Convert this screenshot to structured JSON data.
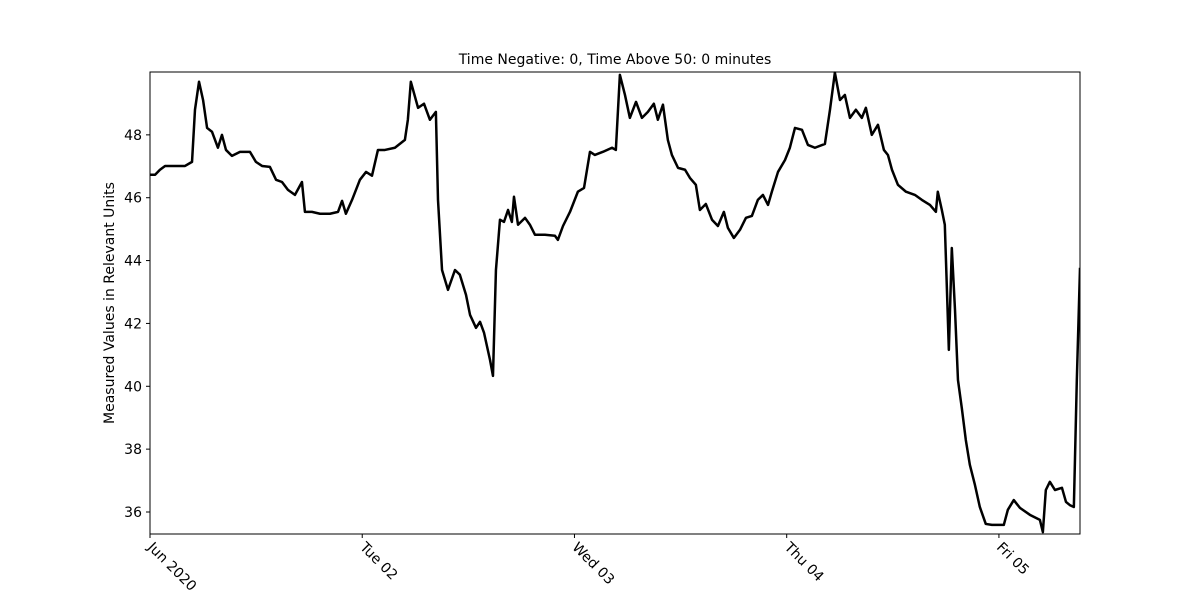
{
  "chart_data": {
    "type": "line",
    "title": "Time Negative: 0, Time Above 50: 0 minutes",
    "y_label": "Measured Values in Relevant Units",
    "color": "#000000",
    "x": [
      0,
      0.024,
      0.047,
      0.071,
      0.118,
      0.165,
      0.198,
      0.212,
      0.231,
      0.25,
      0.269,
      0.292,
      0.32,
      0.339,
      0.358,
      0.386,
      0.424,
      0.471,
      0.499,
      0.528,
      0.565,
      0.594,
      0.622,
      0.65,
      0.683,
      0.716,
      0.73,
      0.763,
      0.801,
      0.848,
      0.886,
      0.905,
      0.923,
      0.952,
      0.989,
      1.018,
      1.046,
      1.074,
      1.107,
      1.154,
      1.201,
      1.215,
      1.229,
      1.263,
      1.291,
      1.319,
      1.347,
      1.357,
      1.376,
      1.404,
      1.437,
      1.46,
      1.489,
      1.508,
      1.536,
      1.555,
      1.574,
      1.602,
      1.616,
      1.63,
      1.649,
      1.668,
      1.687,
      1.705,
      1.715,
      1.734,
      1.767,
      1.79,
      1.814,
      1.861,
      1.908,
      1.922,
      1.946,
      1.979,
      2.016,
      2.045,
      2.073,
      2.096,
      2.134,
      2.177,
      2.195,
      2.214,
      2.238,
      2.261,
      2.29,
      2.318,
      2.346,
      2.374,
      2.393,
      2.417,
      2.44,
      2.459,
      2.488,
      2.521,
      2.544,
      2.572,
      2.591,
      2.619,
      2.648,
      2.676,
      2.704,
      2.723,
      2.751,
      2.78,
      2.808,
      2.836,
      2.864,
      2.888,
      2.912,
      2.93,
      2.959,
      2.992,
      3.015,
      3.039,
      3.072,
      3.1,
      3.133,
      3.18,
      3.204,
      3.227,
      3.251,
      3.274,
      3.298,
      3.326,
      3.354,
      3.373,
      3.401,
      3.43,
      3.458,
      3.477,
      3.496,
      3.524,
      3.562,
      3.604,
      3.637,
      3.675,
      3.703,
      3.712,
      3.731,
      3.745,
      3.755,
      3.764,
      3.778,
      3.793,
      3.807,
      3.825,
      3.844,
      3.863,
      3.887,
      3.91,
      3.938,
      3.967,
      4.023,
      4.042,
      4.07,
      4.099,
      4.146,
      4.193,
      4.207,
      4.221,
      4.24,
      4.264,
      4.297,
      4.316,
      4.334,
      4.353,
      4.367,
      4.382
    ],
    "values": [
      46.73,
      46.73,
      46.89,
      47.01,
      47.01,
      47.01,
      47.14,
      48.8,
      49.69,
      49.11,
      48.22,
      48.1,
      47.59,
      48.0,
      47.52,
      47.33,
      47.46,
      47.46,
      47.14,
      47.01,
      46.98,
      46.57,
      46.5,
      46.25,
      46.09,
      46.5,
      45.55,
      45.55,
      45.49,
      45.49,
      45.55,
      45.9,
      45.49,
      45.93,
      46.57,
      46.82,
      46.7,
      47.52,
      47.52,
      47.59,
      47.84,
      48.48,
      49.69,
      48.86,
      48.99,
      48.48,
      48.73,
      45.93,
      43.7,
      43.07,
      43.7,
      43.55,
      42.91,
      42.27,
      41.86,
      42.05,
      41.7,
      40.84,
      40.33,
      43.7,
      45.3,
      45.23,
      45.61,
      45.23,
      46.03,
      45.14,
      45.36,
      45.14,
      44.82,
      44.82,
      44.79,
      44.66,
      45.1,
      45.55,
      46.19,
      46.31,
      47.46,
      47.36,
      47.46,
      47.59,
      47.52,
      49.91,
      49.27,
      48.54,
      49.05,
      48.54,
      48.73,
      48.99,
      48.48,
      48.96,
      47.84,
      47.36,
      46.95,
      46.89,
      46.63,
      46.41,
      45.61,
      45.8,
      45.3,
      45.1,
      45.55,
      45.04,
      44.72,
      44.98,
      45.36,
      45.42,
      45.93,
      46.09,
      45.77,
      46.19,
      46.82,
      47.2,
      47.59,
      48.22,
      48.16,
      47.68,
      47.59,
      47.71,
      48.8,
      49.98,
      49.11,
      49.27,
      48.54,
      48.8,
      48.54,
      48.86,
      48.0,
      48.32,
      47.52,
      47.36,
      46.89,
      46.41,
      46.19,
      46.09,
      45.93,
      45.77,
      45.55,
      46.19,
      45.61,
      45.14,
      43.07,
      41.16,
      44.4,
      42.43,
      40.2,
      39.31,
      38.29,
      37.5,
      36.86,
      36.16,
      35.62,
      35.59,
      35.59,
      36.07,
      36.38,
      36.13,
      35.91,
      35.75,
      35.36,
      36.7,
      36.96,
      36.7,
      36.77,
      36.32,
      36.22,
      36.16,
      40.2,
      43.77
    ],
    "xlim": [
      0,
      4.382
    ],
    "xticks": [
      {
        "value": 0,
        "label": "Jun 2020"
      },
      {
        "value": 1,
        "label": "Tue 02"
      },
      {
        "value": 2,
        "label": "Wed 03"
      },
      {
        "value": 3,
        "label": "Thu 04"
      },
      {
        "value": 4,
        "label": "Fri 05"
      }
    ],
    "ylim": [
      35.3,
      50.0
    ],
    "yticks": [
      36,
      38,
      40,
      42,
      44,
      46,
      48
    ]
  }
}
